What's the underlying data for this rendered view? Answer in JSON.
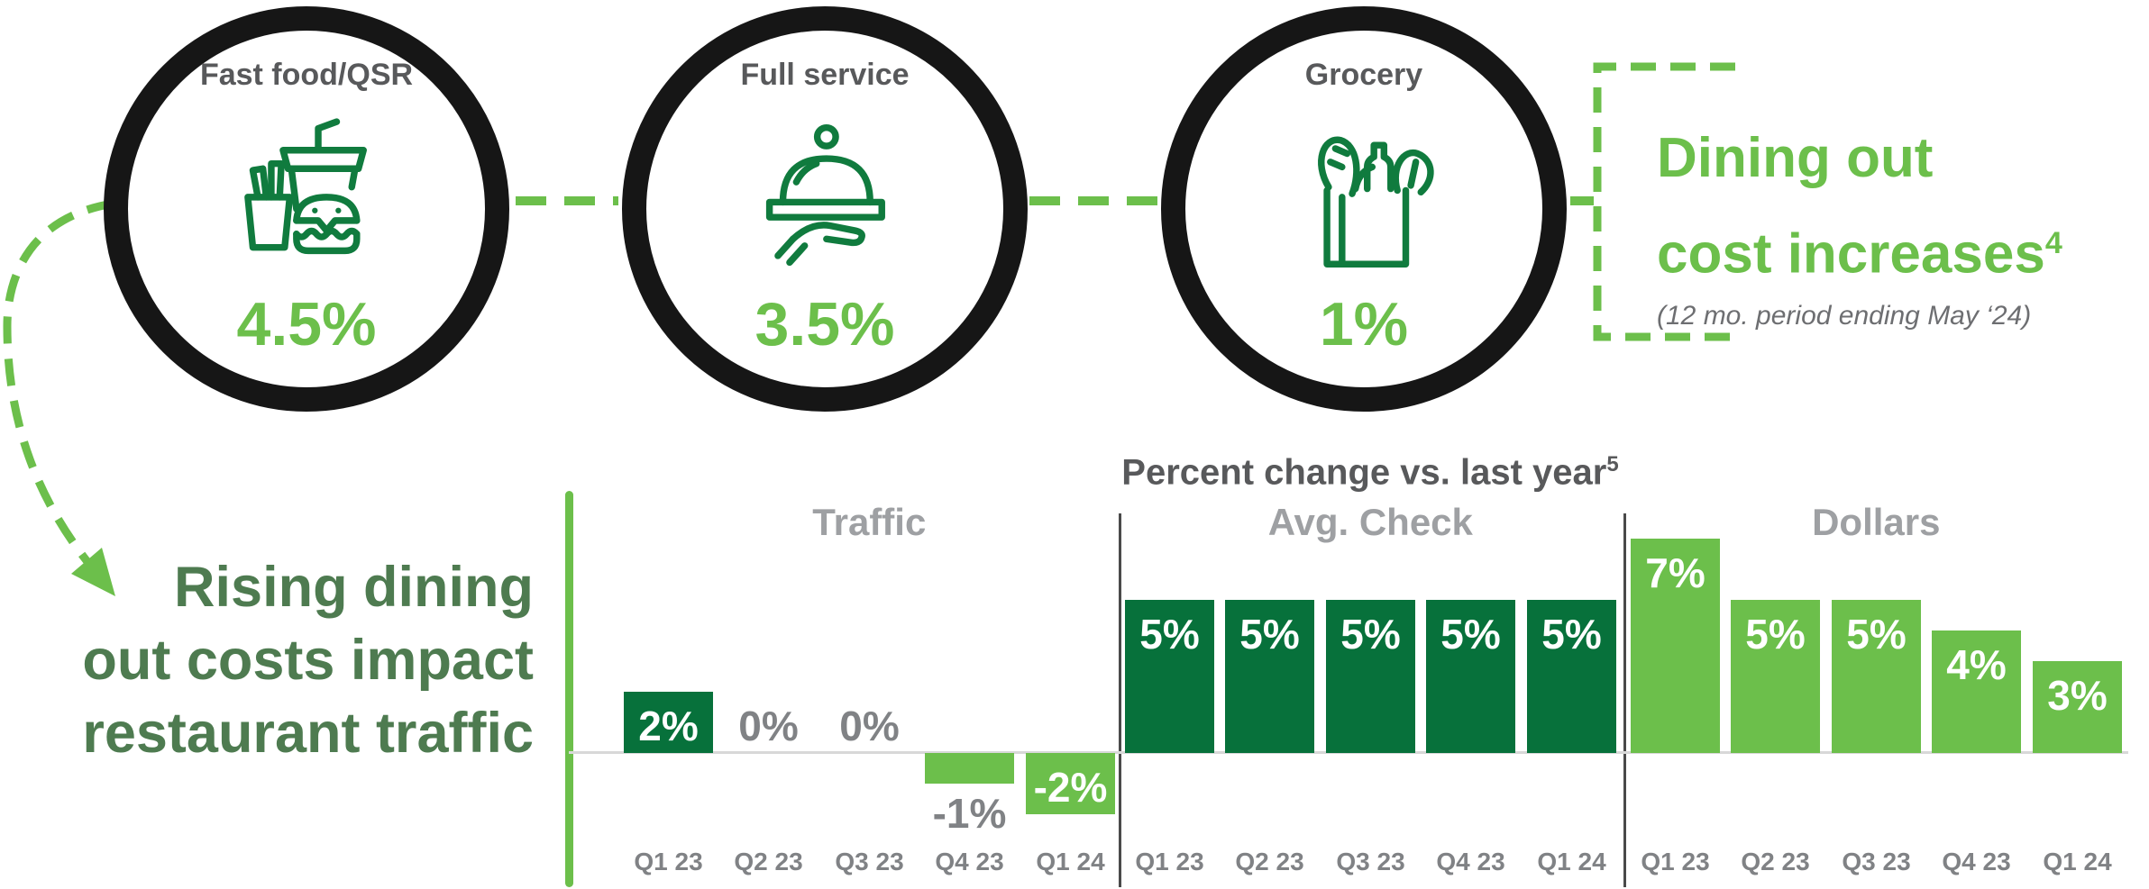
{
  "palette": {
    "accent_green": "#6CBF4B",
    "dark_green": "#07713B",
    "icon_green": "#107B3E",
    "text_dark_green": "#4E7B50",
    "ring_black": "#161616",
    "dark_gray": "#58595B",
    "mid_gray": "#808285",
    "mid_gray2": "#6D6E71",
    "header_gray": "#9EA0A3",
    "light_gray_line": "#D8D8D8",
    "divider_gray": "#4A4A4A"
  },
  "circles": [
    {
      "label": "Fast food/QSR",
      "value": "4.5%",
      "icon": "fast-food-icon"
    },
    {
      "label": "Full service",
      "value": "3.5%",
      "icon": "serving-cloche-icon"
    },
    {
      "label": "Grocery",
      "value": "1%",
      "icon": "grocery-bag-icon"
    }
  ],
  "callout": {
    "line1": "Dining out",
    "line2": "cost increases",
    "footnote_ref": "4",
    "subtitle": "(12 mo. period ending May ‘24)"
  },
  "left_message": {
    "line1": "Rising dining",
    "line2": "out costs impact",
    "line3": "restaurant traffic"
  },
  "chart_data": {
    "type": "bar",
    "title": "Percent change vs. last year",
    "title_footnote_ref": "5",
    "unit": "%",
    "categories": [
      "Q1 23",
      "Q2 23",
      "Q3 23",
      "Q4 23",
      "Q1 24"
    ],
    "groups": [
      {
        "name": "Traffic",
        "values": [
          2,
          0,
          0,
          -1,
          -2
        ],
        "bar_color_positive": "#07713B",
        "bar_color_negative": "#6CBF4B"
      },
      {
        "name": "Avg. Check",
        "values": [
          5,
          5,
          5,
          5,
          5
        ],
        "bar_color_positive": "#07713B",
        "bar_color_negative": "#07713B"
      },
      {
        "name": "Dollars",
        "values": [
          7,
          5,
          5,
          4,
          3
        ],
        "bar_color_positive": "#6CBF4B",
        "bar_color_negative": "#6CBF4B"
      }
    ],
    "baseline_value": 0,
    "grid": false,
    "value_labels": true,
    "legend": "none"
  }
}
